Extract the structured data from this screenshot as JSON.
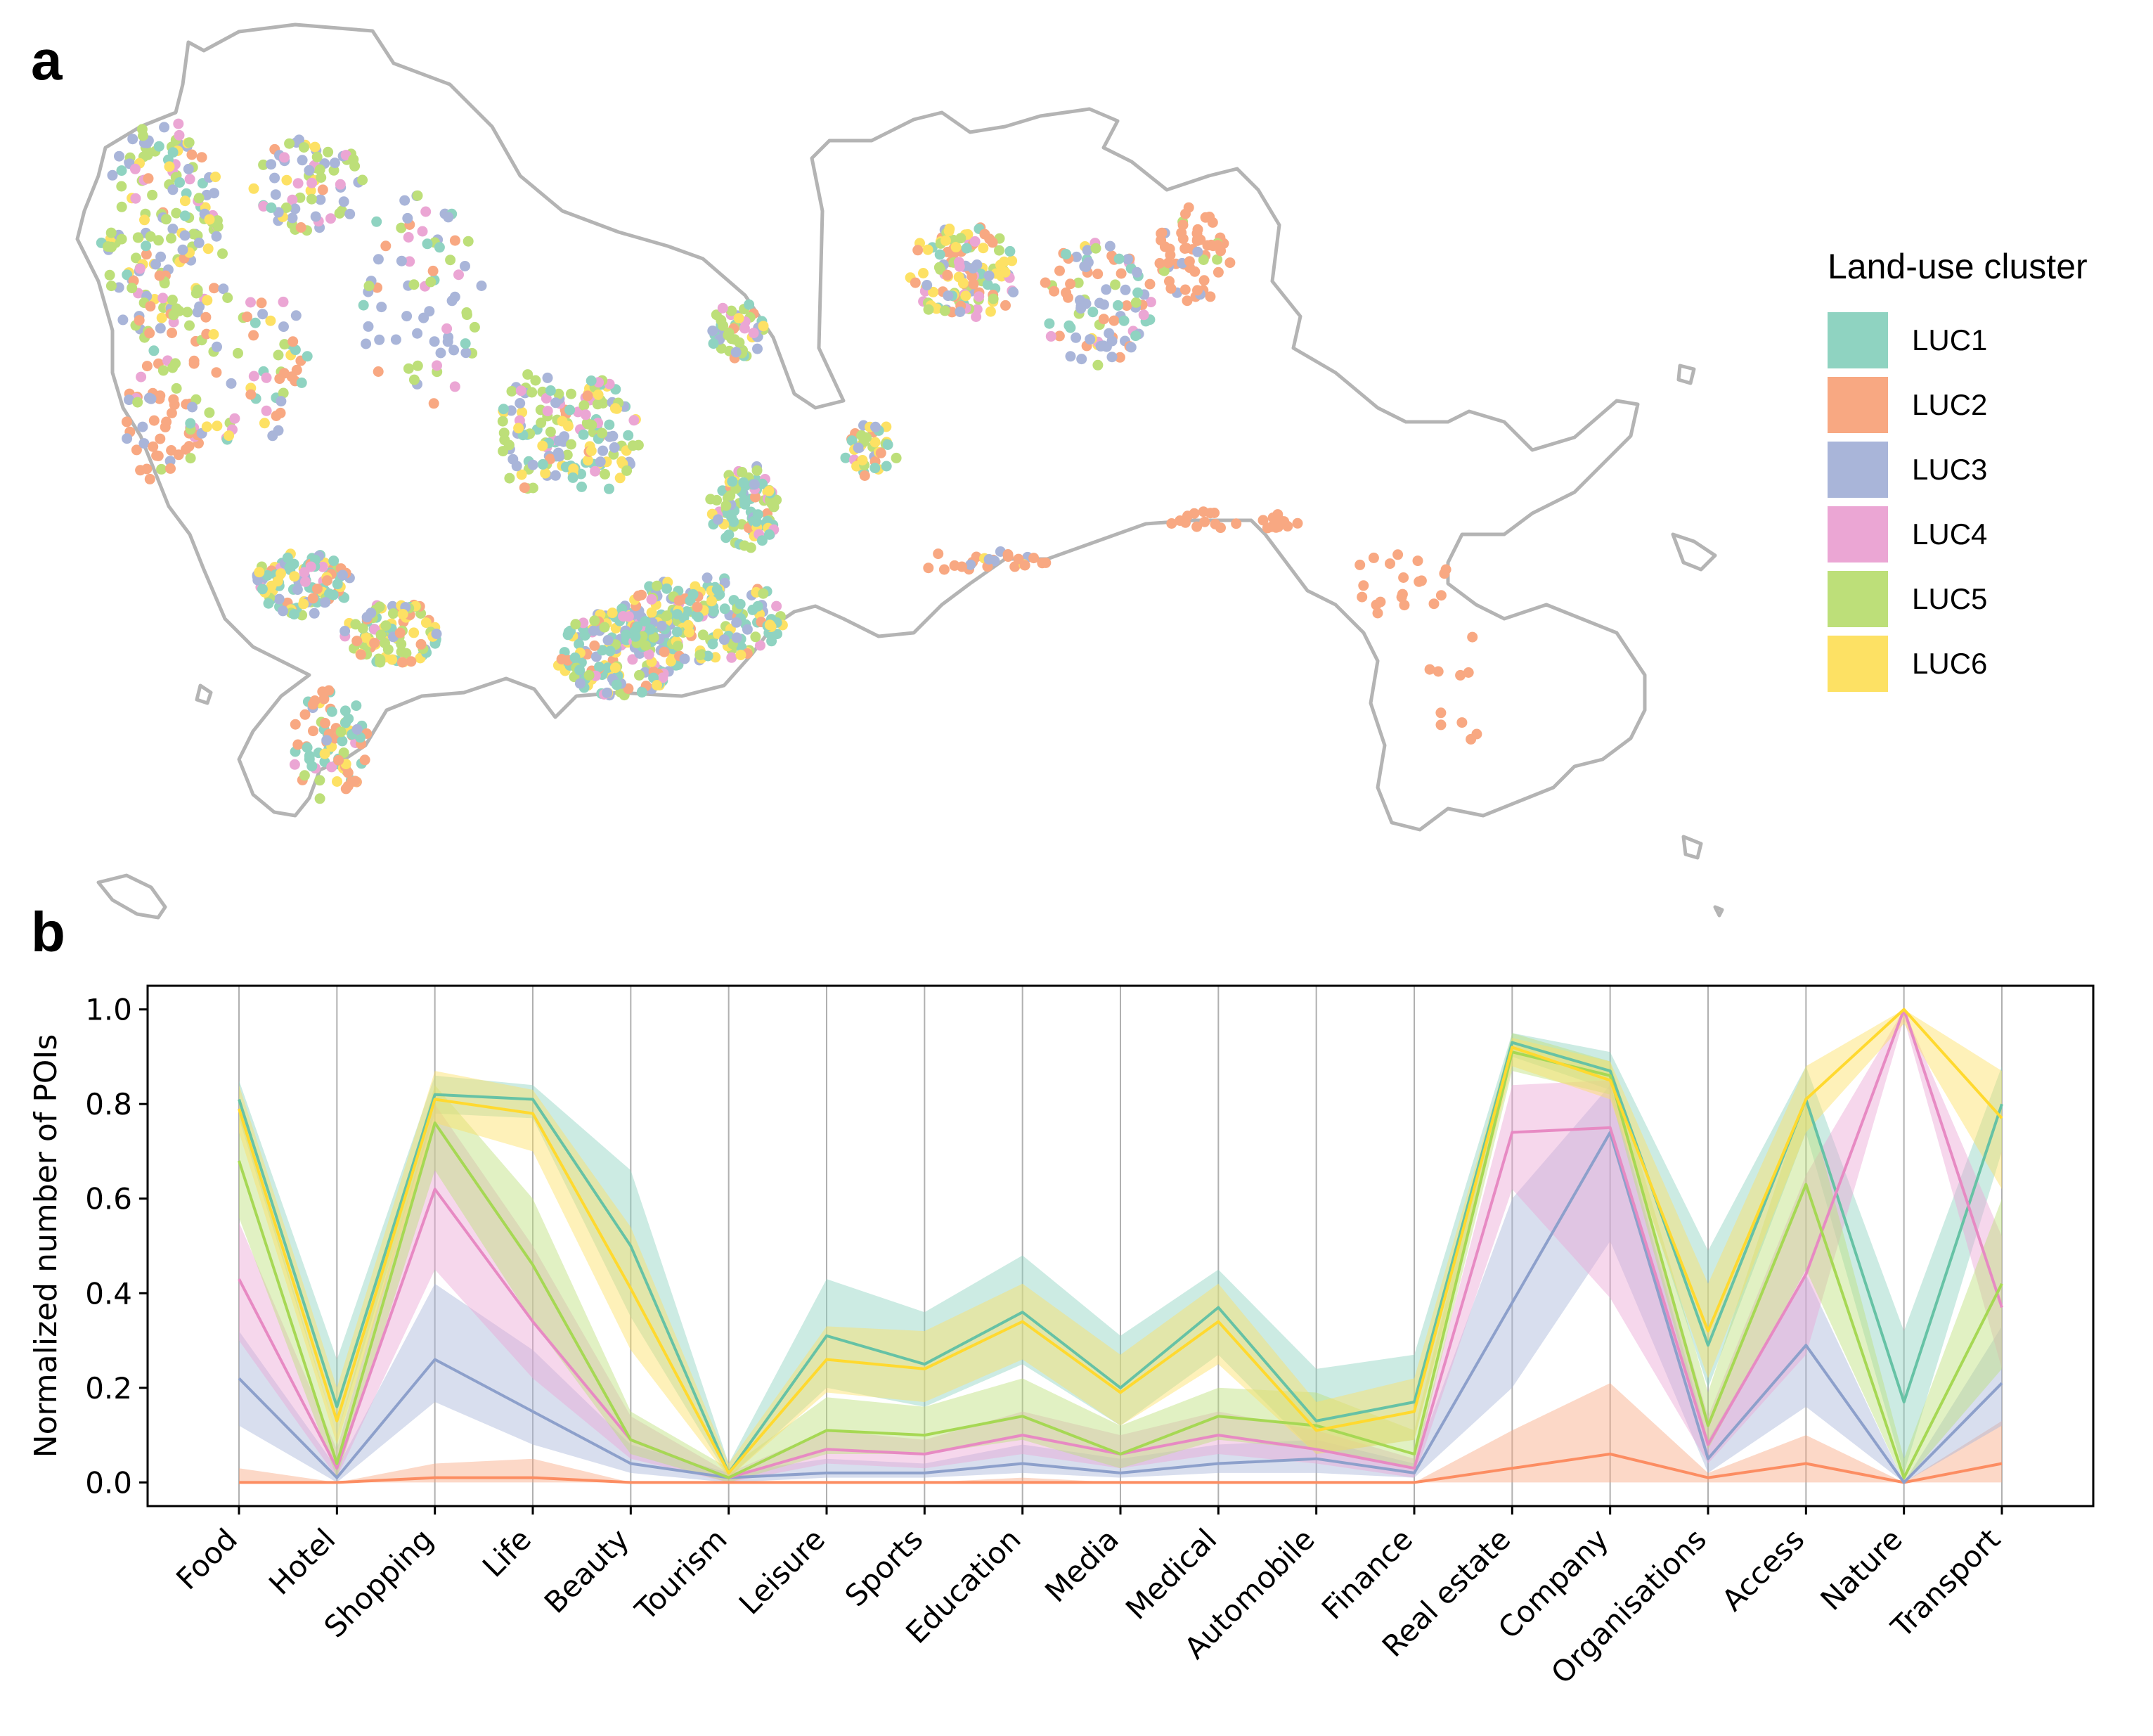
{
  "panels": {
    "a": "a",
    "b": "b"
  },
  "legend": {
    "title": "Land-use cluster",
    "items": [
      {
        "label": "LUC1",
        "color": "#8fd3c1"
      },
      {
        "label": "LUC2",
        "color": "#f8a882"
      },
      {
        "label": "LUC3",
        "color": "#a9b5d9"
      },
      {
        "label": "LUC4",
        "color": "#eba6d4"
      },
      {
        "label": "LUC5",
        "color": "#bddf79"
      },
      {
        "label": "LUC6",
        "color": "#fde164"
      }
    ]
  },
  "chart_data": {
    "type": "line",
    "title": "",
    "xlabel": "",
    "ylabel": "Normalized number of POIs",
    "ylim": [
      -0.05,
      1.05
    ],
    "yticks": [
      "0.0",
      "0.2",
      "0.4",
      "0.6",
      "0.8",
      "1.0"
    ],
    "grid": "vertical",
    "categories": [
      "Food",
      "Hotel",
      "Shopping",
      "Life",
      "Beauty",
      "Tourism",
      "Leisure",
      "Sports",
      "Education",
      "Media",
      "Medical",
      "Automobile",
      "Finance",
      "Real estate",
      "Company",
      "Organisations",
      "Access",
      "Nature",
      "Transport"
    ],
    "series": [
      {
        "name": "LUC1",
        "line_color": "#66c2a5",
        "values": [
          0.81,
          0.16,
          0.82,
          0.81,
          0.5,
          0.02,
          0.31,
          0.25,
          0.36,
          0.2,
          0.37,
          0.13,
          0.17,
          0.93,
          0.87,
          0.29,
          0.81,
          0.17,
          0.8
        ],
        "lower": [
          0.77,
          0.1,
          0.78,
          0.77,
          0.35,
          0.01,
          0.2,
          0.16,
          0.25,
          0.12,
          0.27,
          0.06,
          0.09,
          0.9,
          0.83,
          0.2,
          0.74,
          0.02,
          0.7
        ],
        "upper": [
          0.85,
          0.26,
          0.86,
          0.84,
          0.66,
          0.04,
          0.43,
          0.36,
          0.48,
          0.31,
          0.45,
          0.24,
          0.27,
          0.95,
          0.91,
          0.49,
          0.88,
          0.32,
          0.88
        ]
      },
      {
        "name": "LUC2",
        "line_color": "#fc8d62",
        "values": [
          0.0,
          0.0,
          0.01,
          0.01,
          0.0,
          0.0,
          0.0,
          0.0,
          0.0,
          0.0,
          0.0,
          0.0,
          0.0,
          0.03,
          0.06,
          0.01,
          0.04,
          0.0,
          0.04
        ],
        "lower": [
          0.0,
          0.0,
          0.0,
          0.0,
          0.0,
          0.0,
          0.0,
          0.0,
          0.0,
          0.0,
          0.0,
          0.0,
          0.0,
          0.0,
          0.0,
          0.0,
          0.0,
          0.0,
          0.0
        ],
        "upper": [
          0.03,
          0.0,
          0.04,
          0.05,
          0.0,
          0.0,
          0.0,
          0.0,
          0.01,
          0.0,
          0.0,
          0.0,
          0.0,
          0.11,
          0.21,
          0.02,
          0.1,
          0.0,
          0.13
        ]
      },
      {
        "name": "LUC3",
        "line_color": "#8da0cb",
        "values": [
          0.22,
          0.01,
          0.26,
          0.15,
          0.04,
          0.01,
          0.02,
          0.02,
          0.04,
          0.02,
          0.04,
          0.05,
          0.02,
          0.38,
          0.74,
          0.05,
          0.29,
          0.0,
          0.21
        ],
        "lower": [
          0.12,
          0.0,
          0.17,
          0.08,
          0.02,
          0.0,
          0.01,
          0.01,
          0.02,
          0.01,
          0.02,
          0.02,
          0.01,
          0.2,
          0.51,
          0.02,
          0.16,
          0.0,
          0.12
        ],
        "upper": [
          0.32,
          0.03,
          0.42,
          0.28,
          0.08,
          0.02,
          0.05,
          0.04,
          0.08,
          0.05,
          0.08,
          0.09,
          0.04,
          0.6,
          0.84,
          0.09,
          0.44,
          0.0,
          0.33
        ]
      },
      {
        "name": "LUC4",
        "line_color": "#e78ac3",
        "values": [
          0.43,
          0.03,
          0.62,
          0.34,
          0.09,
          0.01,
          0.07,
          0.06,
          0.1,
          0.06,
          0.1,
          0.07,
          0.03,
          0.74,
          0.75,
          0.08,
          0.44,
          1.0,
          0.37
        ],
        "lower": [
          0.3,
          0.01,
          0.45,
          0.22,
          0.05,
          0.0,
          0.04,
          0.03,
          0.06,
          0.03,
          0.06,
          0.04,
          0.01,
          0.62,
          0.39,
          0.04,
          0.27,
          0.98,
          0.24
        ],
        "upper": [
          0.55,
          0.07,
          0.8,
          0.5,
          0.14,
          0.02,
          0.11,
          0.09,
          0.15,
          0.1,
          0.15,
          0.11,
          0.05,
          0.84,
          0.85,
          0.14,
          0.65,
          1.0,
          0.52
        ]
      },
      {
        "name": "LUC5",
        "line_color": "#a6d854",
        "values": [
          0.68,
          0.04,
          0.76,
          0.46,
          0.09,
          0.01,
          0.11,
          0.1,
          0.14,
          0.06,
          0.14,
          0.12,
          0.06,
          0.91,
          0.86,
          0.12,
          0.63,
          0.01,
          0.42
        ],
        "lower": [
          0.56,
          0.01,
          0.66,
          0.34,
          0.06,
          0.0,
          0.06,
          0.06,
          0.09,
          0.03,
          0.09,
          0.07,
          0.03,
          0.87,
          0.82,
          0.07,
          0.45,
          0.0,
          0.24
        ],
        "upper": [
          0.79,
          0.1,
          0.84,
          0.6,
          0.15,
          0.03,
          0.18,
          0.16,
          0.22,
          0.12,
          0.2,
          0.19,
          0.11,
          0.95,
          0.89,
          0.19,
          0.82,
          0.05,
          0.6
        ]
      },
      {
        "name": "LUC6",
        "line_color": "#ffd92f",
        "values": [
          0.79,
          0.13,
          0.81,
          0.78,
          0.41,
          0.02,
          0.26,
          0.24,
          0.34,
          0.19,
          0.34,
          0.11,
          0.15,
          0.92,
          0.85,
          0.32,
          0.81,
          1.0,
          0.77
        ],
        "lower": [
          0.74,
          0.08,
          0.76,
          0.7,
          0.28,
          0.01,
          0.19,
          0.17,
          0.26,
          0.12,
          0.25,
          0.06,
          0.09,
          0.88,
          0.81,
          0.22,
          0.74,
          0.97,
          0.62
        ],
        "upper": [
          0.84,
          0.2,
          0.87,
          0.83,
          0.54,
          0.04,
          0.33,
          0.32,
          0.42,
          0.27,
          0.42,
          0.17,
          0.22,
          0.94,
          0.89,
          0.42,
          0.88,
          1.0,
          0.87
        ]
      }
    ]
  }
}
